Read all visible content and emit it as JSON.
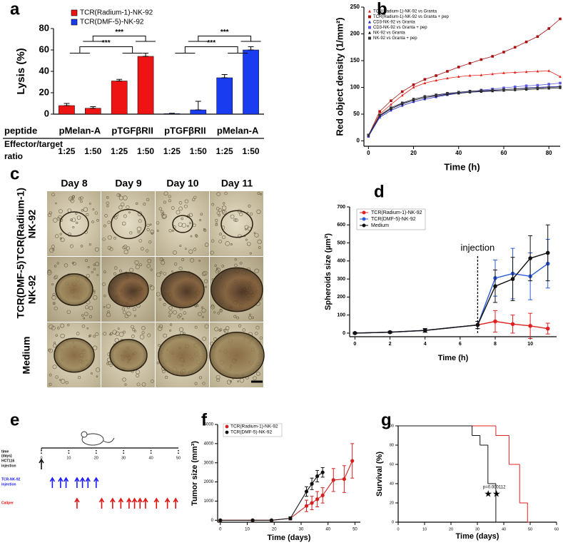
{
  "chart_data": [
    {
      "panel": "a",
      "type": "bar",
      "ylabel": "Lysis (%)",
      "categories": [
        "1:25",
        "1:50",
        "1:25",
        "1:50",
        "1:25",
        "1:50",
        "1:25",
        "1:50"
      ],
      "series": [
        {
          "name": "TCR(Radium-1)-NK-92",
          "color": "#ee1414",
          "values": [
            8,
            5.5,
            31,
            54,
            null,
            null,
            null,
            null
          ],
          "errors": [
            2,
            1.5,
            1.5,
            3,
            null,
            null,
            null,
            null
          ]
        },
        {
          "name": "TCR(DMF-5)-NK-92",
          "color": "#1a3cf0",
          "values": [
            null,
            null,
            null,
            null,
            0.5,
            4,
            34,
            60
          ],
          "errors": [
            null,
            null,
            null,
            null,
            0.3,
            8,
            3,
            3
          ]
        }
      ],
      "ylim": [
        0,
        80
      ],
      "yticks": [
        0,
        20,
        40,
        60,
        80
      ],
      "groups": [
        "pMelan-A",
        "pTGFβRII",
        "pTGFβRII",
        "pMelan-A"
      ],
      "peptide_label": "peptide",
      "ratio_label": [
        "Effector/target",
        "ratio"
      ],
      "significance": [
        "***",
        "***",
        "***",
        "***"
      ]
    },
    {
      "panel": "b",
      "type": "line",
      "xlabel": "Time (h)",
      "ylabel": "Red object density (1/mm²)",
      "x": [
        0,
        5,
        10,
        15,
        20,
        25,
        30,
        35,
        40,
        45,
        50,
        55,
        60,
        65,
        70,
        75,
        80,
        85
      ],
      "series": [
        {
          "name": "TCR(Radium-1)-NK-92 vs Granta",
          "color": "#e8201c",
          "marker": "triangle",
          "values": [
            10,
            50,
            68,
            85,
            100,
            108,
            113,
            117,
            120,
            122,
            123,
            125,
            127,
            128,
            129,
            130,
            131,
            120
          ]
        },
        {
          "name": "TCR(Radium-1)-NK-92 vs Granta + pep",
          "color": "#a81010",
          "marker": "square",
          "values": [
            10,
            55,
            75,
            92,
            105,
            115,
            122,
            130,
            138,
            145,
            152,
            158,
            166,
            175,
            185,
            195,
            210,
            228
          ]
        },
        {
          "name": "CD3-NK-92 vs Granta",
          "color": "#2020c0",
          "marker": "triangle",
          "values": [
            8,
            44,
            57,
            66,
            73,
            78,
            82,
            86,
            89,
            91,
            93,
            94,
            96,
            97,
            99,
            100,
            101,
            102
          ]
        },
        {
          "name": "CD3-NK-92 vs Granta + pep",
          "color": "#5a5ae6",
          "marker": "square",
          "values": [
            9,
            46,
            60,
            70,
            76,
            81,
            85,
            88,
            90,
            92,
            95,
            97,
            99,
            101,
            103,
            104,
            106,
            108
          ]
        },
        {
          "name": "NK-92 vs Granta",
          "color": "#111111",
          "marker": "triangle",
          "values": [
            10,
            47,
            60,
            69,
            76,
            81,
            84,
            87,
            89,
            91,
            92,
            93,
            94,
            95,
            96,
            97,
            98,
            99
          ]
        },
        {
          "name": "NK-92 vs Granta + pep",
          "color": "#333333",
          "marker": "square",
          "values": [
            11,
            48,
            62,
            71,
            78,
            83,
            86,
            89,
            91,
            93,
            94,
            95,
            96,
            97,
            98,
            99,
            100,
            101
          ]
        }
      ],
      "xlim": [
        -2,
        85
      ],
      "xticks": [
        0,
        20,
        40,
        60,
        80
      ],
      "ylim": [
        -10,
        250
      ],
      "yticks": [
        0,
        50,
        100,
        150,
        200,
        250
      ]
    },
    {
      "panel": "d",
      "type": "line",
      "xlabel": "Time (h)",
      "ylabel": "Spheroids size (µm²)",
      "x": [
        0,
        2,
        4,
        7,
        8,
        9,
        10,
        11
      ],
      "series": [
        {
          "name": "TCR(Radium-1)-NK-92",
          "color": "#e02020",
          "marker": "circle",
          "values": [
            0,
            5,
            15,
            45,
            65,
            50,
            40,
            25
          ],
          "errors": [
            5,
            5,
            10,
            20,
            60,
            50,
            70,
            30
          ]
        },
        {
          "name": "TCR(DMF-5)-NK-92",
          "color": "#2a5ad8",
          "marker": "circle",
          "values": [
            0,
            5,
            15,
            45,
            305,
            330,
            315,
            385
          ],
          "errors": [
            3,
            5,
            10,
            20,
            100,
            140,
            130,
            135
          ]
        },
        {
          "name": "Medium",
          "color": "#111111",
          "marker": "circle",
          "values": [
            0,
            5,
            15,
            45,
            260,
            300,
            415,
            445
          ],
          "errors": [
            3,
            5,
            10,
            20,
            90,
            120,
            125,
            155
          ]
        }
      ],
      "annotation": "injection",
      "annotation_x": 7,
      "xlim": [
        -0.3,
        11.5
      ],
      "xticks": [
        0,
        2,
        4,
        6,
        8,
        10
      ],
      "ylim": [
        -20,
        700
      ],
      "yticks": [
        0,
        100,
        200,
        300,
        400,
        500,
        600,
        700
      ]
    },
    {
      "panel": "e",
      "type": "timeline",
      "axis_label": [
        "time",
        "(days)"
      ],
      "xlim": [
        0,
        50
      ],
      "xticks": [
        0,
        10,
        20,
        30,
        40,
        50
      ],
      "rows": [
        {
          "label": [
            "HCT116",
            "injection"
          ],
          "color": "#111111",
          "days": [
            0
          ]
        },
        {
          "label": [
            "TCR-NK-92",
            "injection"
          ],
          "color": "#1a1aff",
          "days": [
            4,
            7,
            9,
            13,
            15,
            17,
            20
          ]
        },
        {
          "label": [
            "Caliper"
          ],
          "color": "#e01010",
          "days": [
            13,
            22,
            26,
            29,
            32,
            34,
            36,
            38,
            42,
            46,
            49
          ]
        }
      ]
    },
    {
      "panel": "f",
      "type": "scatter",
      "xlabel": "Time (days)",
      "ylabel": "Tumor size (mm³)",
      "series": [
        {
          "name": "TCR(Radium-1)-NK-92",
          "color": "#d42020",
          "x": [
            0,
            12,
            19,
            26,
            32,
            34,
            36,
            38,
            42,
            46,
            49
          ],
          "values": [
            0,
            0,
            0,
            100,
            750,
            900,
            1100,
            1300,
            2100,
            2150,
            3100
          ],
          "errors": [
            0,
            30,
            30,
            80,
            300,
            350,
            400,
            400,
            600,
            700,
            900
          ]
        },
        {
          "name": "TCR(DMF-5)-NK-92",
          "color": "#111111",
          "x": [
            0,
            12,
            19,
            26,
            32,
            34,
            36,
            38
          ],
          "values": [
            0,
            0,
            0,
            100,
            1500,
            1900,
            2300,
            2500
          ],
          "errors": [
            0,
            30,
            30,
            80,
            250,
            300,
            300,
            250
          ]
        }
      ],
      "xlim": [
        -1,
        52
      ],
      "xticks": [
        0,
        10,
        20,
        30,
        40,
        50
      ],
      "ylim": [
        -100,
        5000
      ],
      "yticks": [
        0,
        1000,
        2000,
        3000,
        4000,
        5000
      ]
    },
    {
      "panel": "g",
      "type": "step",
      "xlabel": "Time (days)",
      "ylabel": "Survival (%)",
      "series": [
        {
          "color": "#e02020",
          "x": [
            0,
            37,
            42,
            46,
            49
          ],
          "values": [
            100,
            90,
            60,
            20,
            0
          ]
        },
        {
          "color": "#111111",
          "x": [
            0,
            28,
            31,
            34,
            37
          ],
          "values": [
            100,
            90,
            80,
            40,
            0
          ]
        }
      ],
      "annotation": "p=0.000112",
      "stars": "★★",
      "xlim": [
        0,
        60
      ],
      "xticks": [
        0,
        10,
        20,
        30,
        40,
        50,
        60
      ],
      "ylim": [
        0,
        100
      ],
      "yticks": [
        0,
        20,
        40,
        60,
        80,
        100
      ]
    }
  ],
  "panel_c": {
    "panel": "c",
    "days": [
      "Day 8",
      "Day 9",
      "Day 10",
      "Day 11"
    ],
    "rows": [
      [
        "TCR(Radium-1)",
        "NK-92"
      ],
      [
        "TCR(DMF-5)",
        "NK-92"
      ],
      [
        "Medium"
      ]
    ]
  }
}
